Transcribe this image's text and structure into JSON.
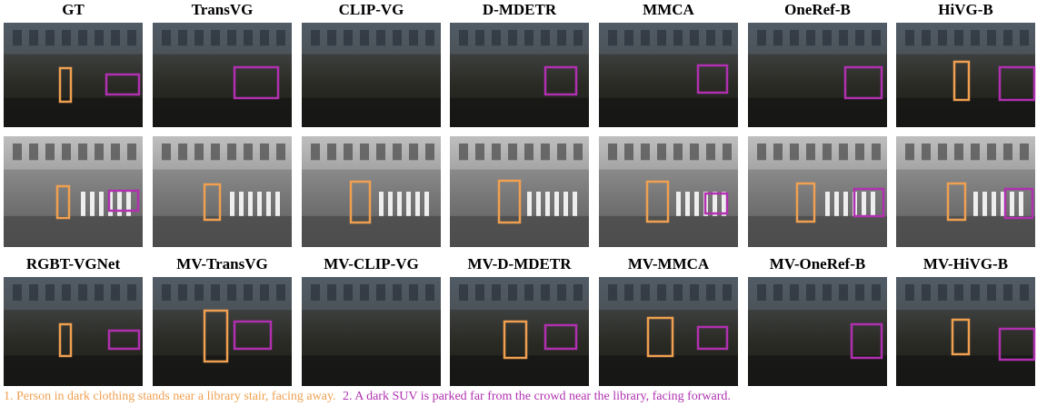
{
  "header_rows": [
    [
      "GT",
      "TransVG",
      "CLIP-VG",
      "D-MDETR",
      "MMCA",
      "OneRef-B",
      "HiVG-B"
    ],
    [
      "RGBT-VGNet",
      "MV-TransVG",
      "MV-CLIP-VG",
      "MV-D-MDETR",
      "MV-MMCA",
      "MV-OneRef-B",
      "MV-HiVG-B"
    ]
  ],
  "caption": [
    "1. Person in dark clothing stands near a library stair, facing away.",
    "2. A dark SUV is parked far from the crowd near the library, facing forward."
  ]
}
